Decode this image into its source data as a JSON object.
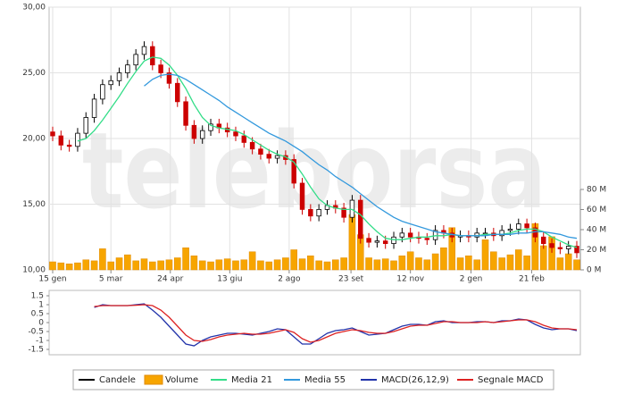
{
  "watermark": "teleborsa",
  "chart_data": [
    {
      "type": "candlestick",
      "x": [
        0,
        7,
        14,
        21,
        28,
        35,
        42,
        49,
        56,
        63,
        70,
        77,
        84,
        91,
        98,
        105,
        112,
        119,
        126,
        133,
        140,
        147,
        154,
        161,
        168,
        175,
        182,
        189,
        196,
        203,
        210,
        217,
        224,
        231,
        238,
        245,
        252,
        259,
        266,
        273,
        280,
        287,
        294,
        301,
        308,
        315,
        322,
        329,
        336,
        343,
        350,
        357,
        364,
        371,
        378,
        385,
        392,
        399,
        406,
        413,
        420,
        427,
        434,
        441
      ],
      "xlim": [
        -3,
        444
      ],
      "xticks": [
        {
          "value": 0,
          "label": "15 gen"
        },
        {
          "value": 49,
          "label": "5 mar"
        },
        {
          "value": 99,
          "label": "24 apr"
        },
        {
          "value": 149,
          "label": "13 giu"
        },
        {
          "value": 199,
          "label": "2 ago"
        },
        {
          "value": 251,
          "label": "23 set"
        },
        {
          "value": 301,
          "label": "12 nov"
        },
        {
          "value": 352,
          "label": "2 gen"
        },
        {
          "value": 403,
          "label": "21 feb"
        }
      ],
      "ylim": [
        10,
        30
      ],
      "yticks": [
        {
          "value": 30,
          "label": "30,00"
        },
        {
          "value": 25,
          "label": "25,00"
        },
        {
          "value": 20,
          "label": "20,00"
        },
        {
          "value": 15,
          "label": "15,00"
        },
        {
          "value": 10,
          "label": "10,00"
        }
      ],
      "y2lim": [
        0,
        80
      ],
      "y2ticks": [
        {
          "value": 80,
          "label": "80 M"
        },
        {
          "value": 60,
          "label": "60 M"
        },
        {
          "value": 40,
          "label": "40 M"
        },
        {
          "value": 20,
          "label": "20 M"
        },
        {
          "value": 0,
          "label": "0 M"
        }
      ],
      "grid": true,
      "series": [
        {
          "name": "Candele",
          "color": "#000000",
          "down_color": "#cc0000",
          "open": [
            20.5,
            20.2,
            19.5,
            19.4,
            20.4,
            21.6,
            23.0,
            24.1,
            24.4,
            25.0,
            25.6,
            26.4,
            27.0,
            25.6,
            25.0,
            24.2,
            22.8,
            21.0,
            20.0,
            20.6,
            21.1,
            20.8,
            20.5,
            20.2,
            19.7,
            19.2,
            18.8,
            18.5,
            18.7,
            18.4,
            16.6,
            14.6,
            14.1,
            14.6,
            14.9,
            14.7,
            14.0,
            15.3,
            12.4,
            12.1,
            12.2,
            12.0,
            12.5,
            12.8,
            12.5,
            12.4,
            12.3,
            13.0,
            12.8,
            12.5,
            12.6,
            12.5,
            12.8,
            12.8,
            12.6,
            13.0,
            13.1,
            13.5,
            13.2,
            12.5,
            12.0,
            11.7,
            11.6,
            11.8
          ],
          "high": [
            20.9,
            20.6,
            19.9,
            20.8,
            22.0,
            23.4,
            24.5,
            24.8,
            25.4,
            26.0,
            26.8,
            27.4,
            27.4,
            26.0,
            25.4,
            24.6,
            23.2,
            21.4,
            21.0,
            21.5,
            21.5,
            21.2,
            20.9,
            20.6,
            20.1,
            19.6,
            19.2,
            19.1,
            19.1,
            18.8,
            17.0,
            15.0,
            15.0,
            15.3,
            15.3,
            15.1,
            15.7,
            15.7,
            12.8,
            12.6,
            12.6,
            12.9,
            13.2,
            13.2,
            12.9,
            12.8,
            13.4,
            13.4,
            13.2,
            13.0,
            13.0,
            13.2,
            13.2,
            13.2,
            13.4,
            13.5,
            13.9,
            13.9,
            13.6,
            12.9,
            12.4,
            12.1,
            12.2,
            12.2
          ],
          "low": [
            19.8,
            19.1,
            19.0,
            19.0,
            20.0,
            21.2,
            22.6,
            23.7,
            24.0,
            24.6,
            25.2,
            26.0,
            25.2,
            24.6,
            23.8,
            22.4,
            20.6,
            19.6,
            19.6,
            20.2,
            20.4,
            20.1,
            19.8,
            19.3,
            18.8,
            18.4,
            18.1,
            18.1,
            18.0,
            16.2,
            14.2,
            13.7,
            13.7,
            14.2,
            14.3,
            13.6,
            13.6,
            12.0,
            11.7,
            11.7,
            11.6,
            11.6,
            12.1,
            12.1,
            12.0,
            11.9,
            11.9,
            12.4,
            12.1,
            12.1,
            12.1,
            12.1,
            12.4,
            12.2,
            12.2,
            12.6,
            12.7,
            12.8,
            12.1,
            11.6,
            11.3,
            11.2,
            11.2,
            10.9
          ],
          "close": [
            20.2,
            19.5,
            19.4,
            20.4,
            21.6,
            23.0,
            24.1,
            24.4,
            25.0,
            25.6,
            26.4,
            27.0,
            25.6,
            25.0,
            24.2,
            22.8,
            21.0,
            20.0,
            20.6,
            21.1,
            20.8,
            20.5,
            20.2,
            19.7,
            19.2,
            18.8,
            18.5,
            18.7,
            18.4,
            16.6,
            14.6,
            14.1,
            14.6,
            14.9,
            14.7,
            14.0,
            15.3,
            12.4,
            12.1,
            12.2,
            12.0,
            12.5,
            12.8,
            12.5,
            12.4,
            12.3,
            13.0,
            12.8,
            12.5,
            12.6,
            12.5,
            12.8,
            12.8,
            12.6,
            13.0,
            13.1,
            13.5,
            13.2,
            12.5,
            12.0,
            11.7,
            11.6,
            11.8,
            11.3
          ]
        },
        {
          "name": "Volume",
          "color": "#f7a500",
          "axis": "y2",
          "values": [
            8,
            7,
            6,
            7,
            10,
            9,
            21,
            8,
            12,
            15,
            9,
            11,
            8,
            9,
            10,
            12,
            22,
            14,
            9,
            8,
            10,
            11,
            9,
            10,
            18,
            9,
            8,
            10,
            12,
            20,
            11,
            14,
            9,
            8,
            10,
            12,
            55,
            35,
            12,
            10,
            11,
            9,
            14,
            18,
            12,
            10,
            16,
            22,
            42,
            12,
            14,
            10,
            30,
            18,
            12,
            15,
            20,
            14,
            46,
            24,
            33,
            12,
            16,
            10
          ]
        },
        {
          "name": "Media 21",
          "color": "#33dd88",
          "values": [
            null,
            null,
            null,
            19.8,
            20.0,
            20.6,
            21.4,
            22.3,
            23.2,
            24.2,
            25.1,
            25.9,
            26.2,
            26.1,
            25.6,
            24.8,
            23.8,
            22.6,
            21.6,
            21.0,
            20.8,
            20.7,
            20.6,
            20.3,
            19.9,
            19.5,
            19.1,
            18.8,
            18.6,
            18.2,
            17.3,
            16.3,
            15.4,
            14.9,
            14.7,
            14.6,
            14.6,
            14.2,
            13.5,
            12.9,
            12.4,
            12.3,
            12.3,
            12.4,
            12.5,
            12.5,
            12.6,
            12.6,
            12.7,
            12.6,
            12.6,
            12.6,
            12.7,
            12.7,
            12.7,
            12.8,
            13.0,
            13.1,
            13.1,
            12.9,
            12.5,
            12.2,
            11.9,
            11.7
          ]
        },
        {
          "name": "Media 55",
          "color": "#3399dd",
          "values": [
            null,
            null,
            null,
            null,
            null,
            null,
            null,
            null,
            null,
            null,
            null,
            24.0,
            24.5,
            24.8,
            24.9,
            24.8,
            24.5,
            24.1,
            23.7,
            23.3,
            22.9,
            22.4,
            22.0,
            21.6,
            21.2,
            20.8,
            20.4,
            20.1,
            19.8,
            19.4,
            19.0,
            18.5,
            18.0,
            17.6,
            17.1,
            16.7,
            16.3,
            15.8,
            15.3,
            14.8,
            14.4,
            14.0,
            13.7,
            13.5,
            13.3,
            13.1,
            12.9,
            12.8,
            12.7,
            12.6,
            12.6,
            12.6,
            12.6,
            12.7,
            12.7,
            12.7,
            12.8,
            12.8,
            12.9,
            12.9,
            12.8,
            12.7,
            12.5,
            12.4
          ]
        }
      ]
    },
    {
      "type": "line",
      "x": [
        0,
        7,
        14,
        21,
        28,
        35,
        42,
        49,
        56,
        63,
        70,
        77,
        84,
        91,
        98,
        105,
        112,
        119,
        126,
        133,
        140,
        147,
        154,
        161,
        168,
        175,
        182,
        189,
        196,
        203,
        210,
        217,
        224,
        231,
        238,
        245,
        252,
        259,
        266,
        273,
        280,
        287,
        294,
        301,
        308,
        315,
        322,
        329,
        336,
        343,
        350,
        357,
        364,
        371,
        378,
        385,
        392,
        399,
        406,
        413,
        420,
        427,
        434,
        441
      ],
      "xlim": [
        -3,
        444
      ],
      "ylim": [
        -1.8,
        1.8
      ],
      "yticks": [
        1.5,
        1,
        0.5,
        0,
        -0.5,
        -1,
        -1.5
      ],
      "series": [
        {
          "name": "MACD(26,12,9)",
          "color": "#2233aa",
          "values": [
            null,
            null,
            null,
            null,
            null,
            0.85,
            1.0,
            0.95,
            0.95,
            0.95,
            1.0,
            1.05,
            0.7,
            0.3,
            -0.2,
            -0.7,
            -1.2,
            -1.3,
            -1.0,
            -0.8,
            -0.7,
            -0.6,
            -0.6,
            -0.65,
            -0.7,
            -0.6,
            -0.5,
            -0.35,
            -0.4,
            -0.8,
            -1.2,
            -1.2,
            -0.9,
            -0.6,
            -0.45,
            -0.4,
            -0.3,
            -0.5,
            -0.7,
            -0.65,
            -0.6,
            -0.4,
            -0.2,
            -0.1,
            -0.1,
            -0.15,
            0.05,
            0.1,
            0.0,
            0.0,
            0.0,
            0.05,
            0.05,
            0.0,
            0.1,
            0.1,
            0.2,
            0.15,
            -0.1,
            -0.3,
            -0.4,
            -0.35,
            -0.35,
            -0.45
          ]
        },
        {
          "name": "Segnale MACD",
          "color": "#dd2222",
          "values": [
            null,
            null,
            null,
            null,
            null,
            0.9,
            0.95,
            0.95,
            0.95,
            0.95,
            0.97,
            1.0,
            0.95,
            0.7,
            0.3,
            -0.2,
            -0.7,
            -1.0,
            -1.05,
            -0.95,
            -0.8,
            -0.7,
            -0.65,
            -0.6,
            -0.65,
            -0.65,
            -0.6,
            -0.5,
            -0.4,
            -0.55,
            -0.9,
            -1.1,
            -1.0,
            -0.8,
            -0.6,
            -0.5,
            -0.4,
            -0.45,
            -0.55,
            -0.6,
            -0.6,
            -0.5,
            -0.35,
            -0.2,
            -0.15,
            -0.15,
            -0.05,
            0.05,
            0.05,
            0.0,
            0.0,
            0.0,
            0.05,
            0.0,
            0.05,
            0.1,
            0.15,
            0.15,
            0.05,
            -0.15,
            -0.3,
            -0.35,
            -0.35,
            -0.4
          ]
        }
      ]
    }
  ]
}
